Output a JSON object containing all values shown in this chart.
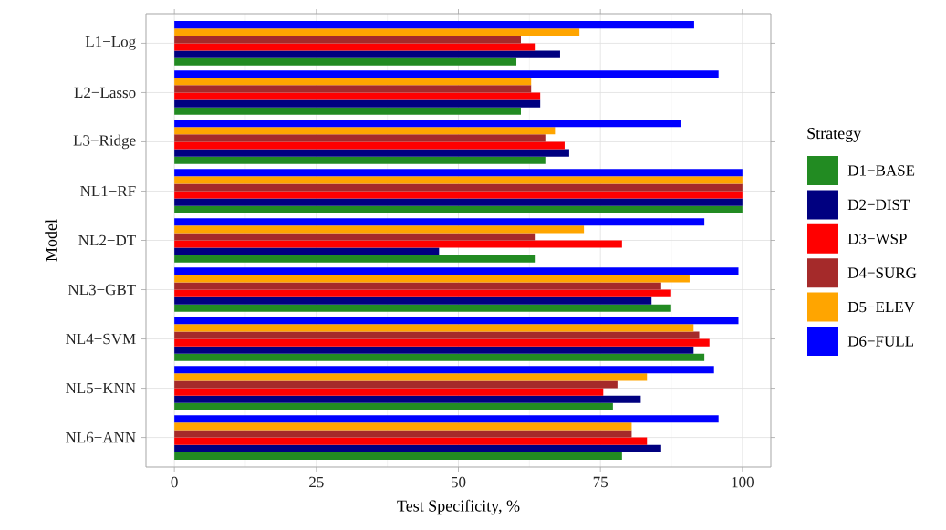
{
  "chart_data": {
    "type": "bar",
    "orientation": "horizontal",
    "xlabel": "Test Specificity, %",
    "ylabel": "Model",
    "legend_title": "Strategy",
    "legend": "right",
    "grid": true,
    "categories": [
      "L1−Log",
      "L2−Lasso",
      "L3−Ridge",
      "NL1−RF",
      "NL2−DT",
      "NL3−GBT",
      "NL4−SVM",
      "NL5−KNN",
      "NL6−ANN"
    ],
    "xlim": [
      -5,
      105
    ],
    "xticks": [
      0,
      25,
      50,
      75,
      100
    ],
    "series": [
      {
        "name": "D1−BASE",
        "color": "#228b22",
        "values": [
          60.2,
          61.0,
          65.3,
          100,
          63.6,
          87.3,
          93.3,
          77.2,
          78.8
        ]
      },
      {
        "name": "D2−DIST",
        "color": "#000080",
        "values": [
          67.9,
          64.4,
          69.5,
          100,
          46.6,
          84.0,
          91.4,
          82.1,
          85.7
        ]
      },
      {
        "name": "D3−WSP",
        "color": "#ff0000",
        "values": [
          63.6,
          64.4,
          68.7,
          100,
          78.8,
          87.3,
          94.2,
          75.5,
          83.2
        ]
      },
      {
        "name": "D4−SURG",
        "color": "#a52a2a",
        "values": [
          61.0,
          62.8,
          65.3,
          100,
          63.6,
          85.7,
          92.4,
          78.0,
          80.5
        ]
      },
      {
        "name": "D5−ELEV",
        "color": "#ffa500",
        "values": [
          71.3,
          62.8,
          67.0,
          100,
          72.1,
          90.7,
          91.4,
          83.2,
          80.5
        ]
      },
      {
        "name": "D6−FULL",
        "color": "#0000ff",
        "values": [
          91.5,
          95.8,
          89.1,
          100,
          93.3,
          99.3,
          99.3,
          95.0,
          95.8
        ]
      }
    ]
  }
}
